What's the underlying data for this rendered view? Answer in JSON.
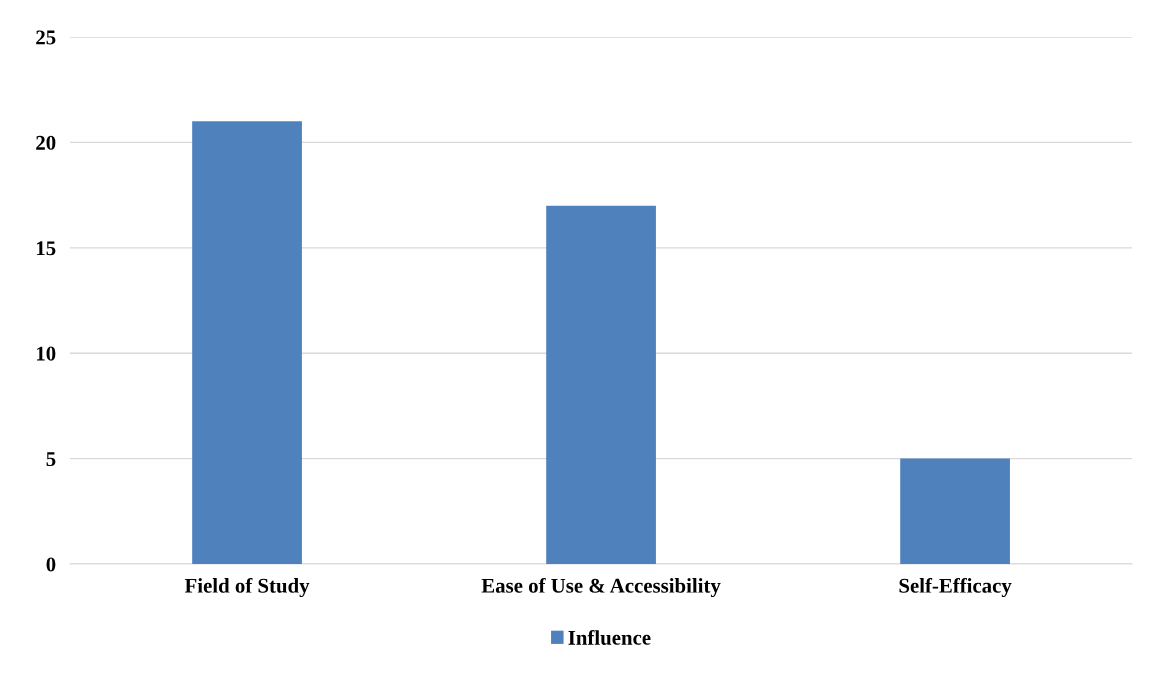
{
  "chart_data": {
    "type": "bar",
    "categories": [
      "Field of Study",
      "Ease of Use & Accessibility",
      "Self-Efficacy"
    ],
    "series": [
      {
        "name": "Influence",
        "color": "#4f81bd",
        "values": [
          21,
          17,
          5
        ]
      }
    ],
    "ylim": [
      0,
      25
    ],
    "yticks": [
      0,
      5,
      10,
      15,
      20,
      25
    ],
    "grid": "y",
    "legend": "bottom"
  }
}
